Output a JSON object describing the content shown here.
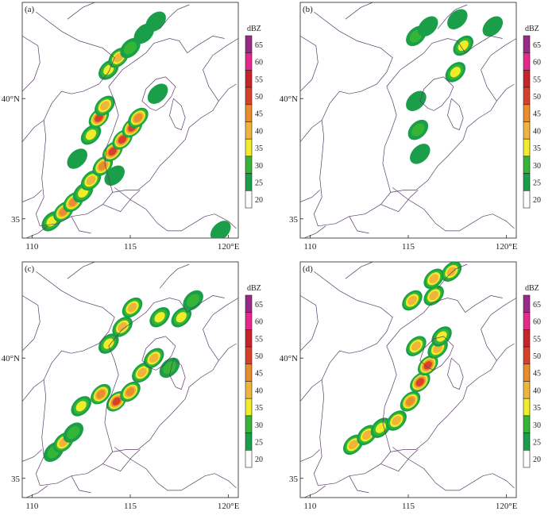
{
  "chart_data": [
    {
      "type": "heatmap",
      "panel_label": "(a)",
      "colorbar": {
        "unit": "dBZ",
        "levels": [
          20,
          25,
          30,
          35,
          40,
          45,
          50,
          55,
          60,
          65
        ]
      },
      "x_ticks": [
        "110",
        "115",
        "120°E"
      ],
      "y_ticks": [
        "40°N",
        "35"
      ],
      "xlim": [
        109.5,
        120.5
      ],
      "ylim": [
        34.2,
        44.0
      ],
      "grid": false,
      "cells": [
        {
          "lon": 111.0,
          "lat": 34.9,
          "dbz": 35
        },
        {
          "lon": 111.6,
          "lat": 35.3,
          "dbz": 45
        },
        {
          "lon": 112.1,
          "lat": 35.7,
          "dbz": 45
        },
        {
          "lon": 112.6,
          "lat": 36.1,
          "dbz": 35
        },
        {
          "lon": 113.0,
          "lat": 36.6,
          "dbz": 40
        },
        {
          "lon": 113.6,
          "lat": 37.2,
          "dbz": 45
        },
        {
          "lon": 114.1,
          "lat": 37.8,
          "dbz": 50
        },
        {
          "lon": 114.6,
          "lat": 38.3,
          "dbz": 50
        },
        {
          "lon": 115.1,
          "lat": 38.8,
          "dbz": 50
        },
        {
          "lon": 115.4,
          "lat": 39.2,
          "dbz": 45
        },
        {
          "lon": 113.0,
          "lat": 38.5,
          "dbz": 35
        },
        {
          "lon": 113.4,
          "lat": 39.2,
          "dbz": 50
        },
        {
          "lon": 113.7,
          "lat": 39.7,
          "dbz": 40
        },
        {
          "lon": 113.9,
          "lat": 41.2,
          "dbz": 35
        },
        {
          "lon": 114.4,
          "lat": 41.7,
          "dbz": 40
        },
        {
          "lon": 115.0,
          "lat": 42.1,
          "dbz": 30
        },
        {
          "lon": 115.7,
          "lat": 42.7,
          "dbz": 25
        },
        {
          "lon": 116.3,
          "lat": 43.2,
          "dbz": 25
        },
        {
          "lon": 112.3,
          "lat": 37.5,
          "dbz": 25
        },
        {
          "lon": 114.2,
          "lat": 36.8,
          "dbz": 25
        },
        {
          "lon": 116.4,
          "lat": 40.2,
          "dbz": 25
        },
        {
          "lon": 119.6,
          "lat": 34.5,
          "dbz": 25
        }
      ]
    },
    {
      "type": "heatmap",
      "panel_label": "(b)",
      "colorbar": {
        "unit": "dBZ",
        "levels": [
          20,
          25,
          30,
          35,
          40,
          45,
          50,
          55,
          60,
          65
        ]
      },
      "x_ticks": [
        "110",
        "115",
        "120°E"
      ],
      "y_ticks": [
        "40°N",
        "35"
      ],
      "xlim": [
        109.5,
        120.5
      ],
      "ylim": [
        34.2,
        44.0
      ],
      "grid": false,
      "cells": [
        {
          "lon": 115.4,
          "lat": 42.6,
          "dbz": 30
        },
        {
          "lon": 116.0,
          "lat": 43.0,
          "dbz": 25
        },
        {
          "lon": 117.5,
          "lat": 43.3,
          "dbz": 25
        },
        {
          "lon": 117.8,
          "lat": 42.2,
          "dbz": 35
        },
        {
          "lon": 117.4,
          "lat": 41.1,
          "dbz": 35
        },
        {
          "lon": 115.4,
          "lat": 39.9,
          "dbz": 25
        },
        {
          "lon": 115.5,
          "lat": 38.7,
          "dbz": 30
        },
        {
          "lon": 115.6,
          "lat": 37.7,
          "dbz": 25
        },
        {
          "lon": 119.3,
          "lat": 43.0,
          "dbz": 25
        }
      ]
    },
    {
      "type": "heatmap",
      "panel_label": "(c)",
      "colorbar": {
        "unit": "dBZ",
        "levels": [
          20,
          25,
          30,
          35,
          40,
          45,
          50,
          55,
          60,
          65
        ]
      },
      "x_ticks": [
        "110",
        "115",
        "120°E"
      ],
      "y_ticks": [
        "40°N",
        "35"
      ],
      "xlim": [
        109.5,
        120.5
      ],
      "ylim": [
        34.2,
        44.0
      ],
      "grid": false,
      "cells": [
        {
          "lon": 111.1,
          "lat": 36.1,
          "dbz": 30
        },
        {
          "lon": 111.6,
          "lat": 36.5,
          "dbz": 40
        },
        {
          "lon": 112.1,
          "lat": 36.9,
          "dbz": 30
        },
        {
          "lon": 112.5,
          "lat": 38.0,
          "dbz": 35
        },
        {
          "lon": 113.5,
          "lat": 38.5,
          "dbz": 45
        },
        {
          "lon": 114.3,
          "lat": 38.2,
          "dbz": 50
        },
        {
          "lon": 115.0,
          "lat": 38.6,
          "dbz": 45
        },
        {
          "lon": 115.6,
          "lat": 39.4,
          "dbz": 40
        },
        {
          "lon": 113.9,
          "lat": 40.6,
          "dbz": 35
        },
        {
          "lon": 114.6,
          "lat": 41.3,
          "dbz": 40
        },
        {
          "lon": 115.1,
          "lat": 42.1,
          "dbz": 40
        },
        {
          "lon": 116.5,
          "lat": 41.7,
          "dbz": 35
        },
        {
          "lon": 117.6,
          "lat": 41.7,
          "dbz": 35
        },
        {
          "lon": 118.2,
          "lat": 42.4,
          "dbz": 30
        },
        {
          "lon": 116.2,
          "lat": 40.0,
          "dbz": 40
        },
        {
          "lon": 117.0,
          "lat": 39.6,
          "dbz": 30
        }
      ]
    },
    {
      "type": "heatmap",
      "panel_label": "(d)",
      "colorbar": {
        "unit": "dBZ",
        "levels": [
          20,
          25,
          30,
          35,
          40,
          45,
          50,
          55,
          60,
          65
        ]
      },
      "x_ticks": [
        "110",
        "115",
        "120°E"
      ],
      "y_ticks": [
        "40°N",
        "35"
      ],
      "xlim": [
        109.5,
        120.5
      ],
      "ylim": [
        34.2,
        44.0
      ],
      "grid": false,
      "cells": [
        {
          "lon": 112.2,
          "lat": 36.4,
          "dbz": 40
        },
        {
          "lon": 112.9,
          "lat": 36.8,
          "dbz": 40
        },
        {
          "lon": 113.6,
          "lat": 37.1,
          "dbz": 35
        },
        {
          "lon": 114.4,
          "lat": 37.4,
          "dbz": 40
        },
        {
          "lon": 115.1,
          "lat": 38.2,
          "dbz": 45
        },
        {
          "lon": 115.6,
          "lat": 39.0,
          "dbz": 50
        },
        {
          "lon": 116.0,
          "lat": 39.7,
          "dbz": 50
        },
        {
          "lon": 116.5,
          "lat": 40.4,
          "dbz": 40
        },
        {
          "lon": 115.4,
          "lat": 40.5,
          "dbz": 40
        },
        {
          "lon": 116.7,
          "lat": 40.9,
          "dbz": 35
        },
        {
          "lon": 115.2,
          "lat": 42.4,
          "dbz": 40
        },
        {
          "lon": 116.3,
          "lat": 42.6,
          "dbz": 40
        },
        {
          "lon": 116.3,
          "lat": 43.3,
          "dbz": 40
        },
        {
          "lon": 117.2,
          "lat": 43.6,
          "dbz": 40
        }
      ]
    }
  ],
  "colors": {
    "20": "#ffffff",
    "25": "#1a9e4a",
    "30": "#35b535",
    "35": "#f0ec2a",
    "40": "#f0b43c",
    "45": "#e88c2c",
    "50": "#d8402c",
    "55": "#c8222a",
    "60": "#e8278a",
    "65": "#9a2a8a",
    "boundary": "#5a3c6a"
  }
}
